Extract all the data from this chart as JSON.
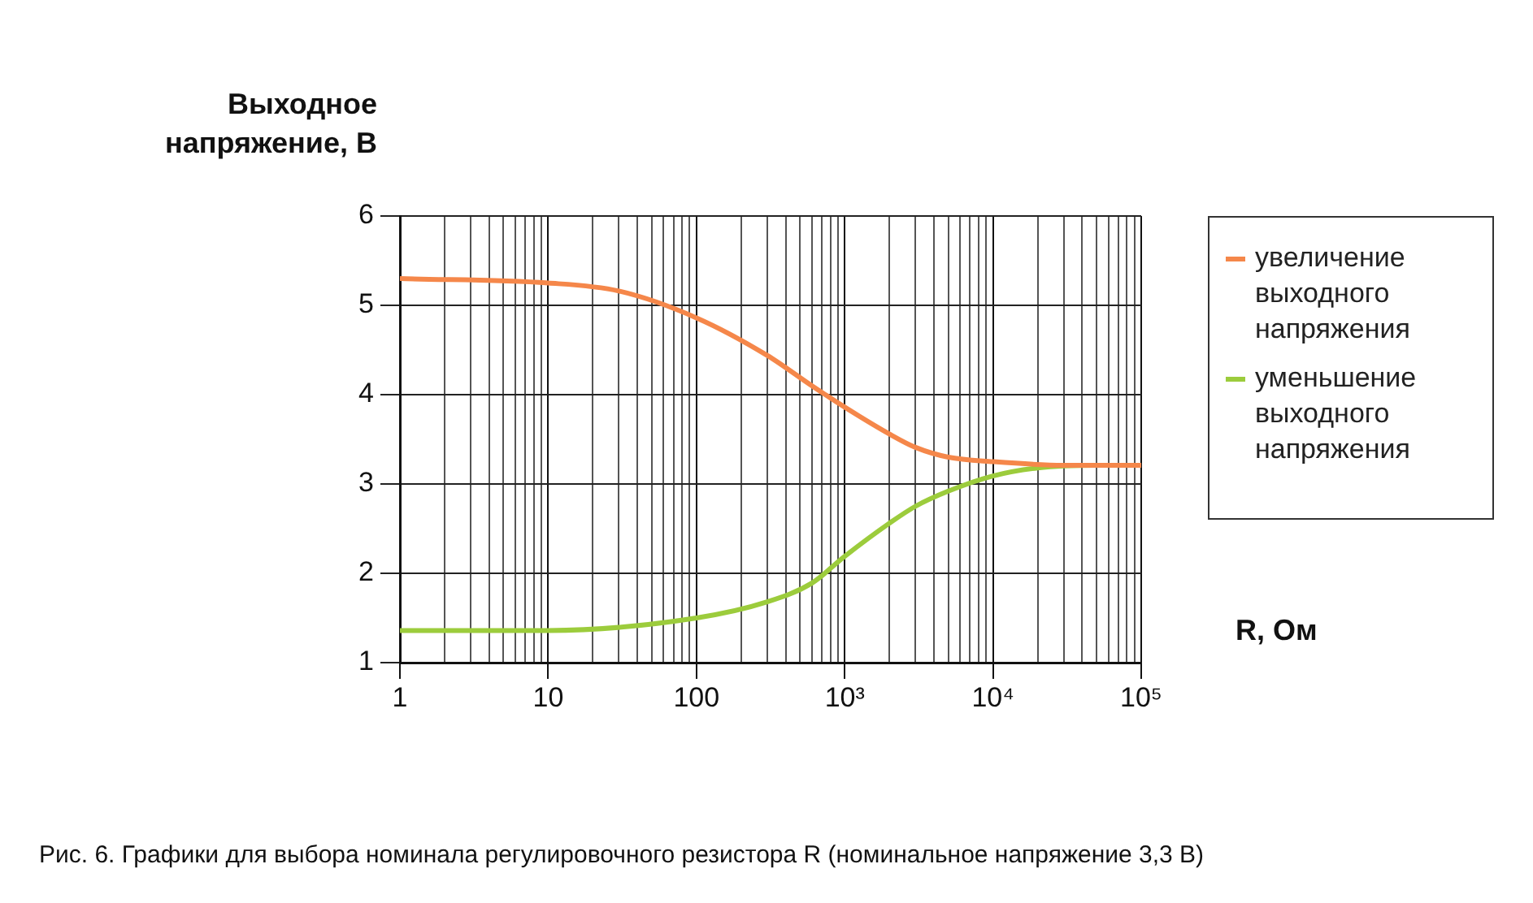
{
  "chart_data": {
    "type": "line",
    "ylabel": "Выходное напряжение, В",
    "xlabel": "R, Ом",
    "log": "x",
    "grid": true,
    "legend": "right",
    "marker": "none",
    "line_style": "solid",
    "xlim": [
      1,
      100000
    ],
    "xticks": [
      1,
      10,
      100,
      {
        "value": 1000,
        "label": "10³"
      },
      {
        "value": 10000,
        "label": "10⁴"
      },
      {
        "value": 100000,
        "label": "10⁵"
      }
    ],
    "ylim": [
      1,
      6
    ],
    "yticks": [
      1,
      2,
      3,
      4,
      5,
      6
    ],
    "series": [
      {
        "name": "увеличение выходного напряжения",
        "color": "#f5874a",
        "x": [
          1,
          10,
          30,
          100,
          300,
          600,
          1000,
          2000,
          3000,
          5000,
          10000,
          30000,
          100000
        ],
        "values": [
          5.3,
          5.25,
          5.16,
          4.86,
          4.44,
          4.1,
          3.86,
          3.56,
          3.41,
          3.3,
          3.25,
          3.21,
          3.21
        ]
      },
      {
        "name": "уменьшение выходного напряжения",
        "color": "#9ccc3c",
        "x": [
          1,
          10,
          100,
          300,
          600,
          1000,
          2000,
          3000,
          5000,
          10000,
          20000,
          50000,
          100000
        ],
        "values": [
          1.36,
          1.36,
          1.5,
          1.68,
          1.89,
          2.19,
          2.56,
          2.75,
          2.92,
          3.09,
          3.18,
          3.21,
          3.21
        ]
      }
    ],
    "annotations": [
      "Рис. 6. Графики для выбора номинала регулировочного резистора R (номинальное напряжение 3,3 В)"
    ]
  }
}
